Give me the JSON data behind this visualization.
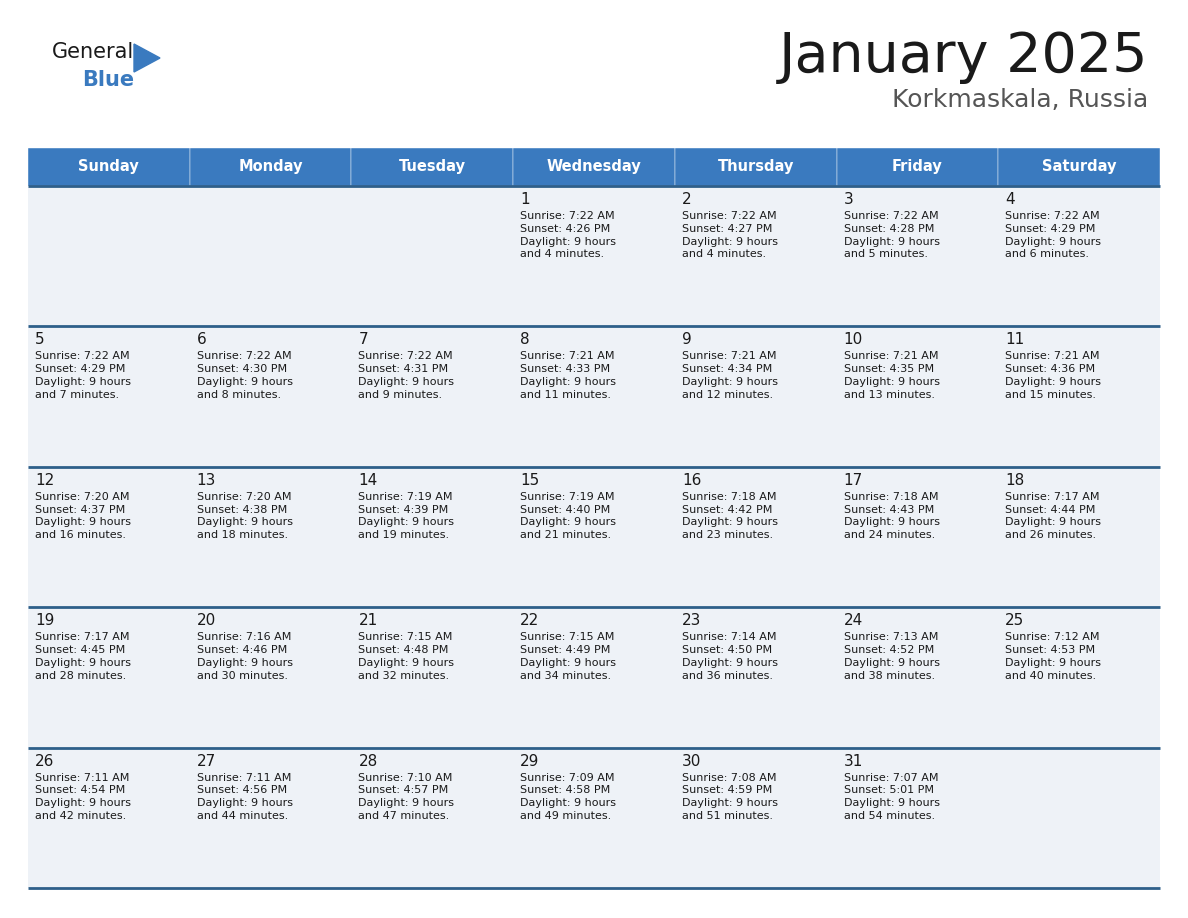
{
  "title": "January 2025",
  "subtitle": "Korkmaskala, Russia",
  "header_color": "#3a7abf",
  "header_text_color": "#ffffff",
  "cell_bg_color": "#eef2f7",
  "border_color": "#2e5f8a",
  "thin_border_color": "#cccccc",
  "days_of_week": [
    "Sunday",
    "Monday",
    "Tuesday",
    "Wednesday",
    "Thursday",
    "Friday",
    "Saturday"
  ],
  "calendar_data": [
    [
      {
        "day": null,
        "sunrise": null,
        "sunset": null,
        "daylight": null
      },
      {
        "day": null,
        "sunrise": null,
        "sunset": null,
        "daylight": null
      },
      {
        "day": null,
        "sunrise": null,
        "sunset": null,
        "daylight": null
      },
      {
        "day": 1,
        "sunrise": "7:22 AM",
        "sunset": "4:26 PM",
        "daylight": "9 hours\nand 4 minutes."
      },
      {
        "day": 2,
        "sunrise": "7:22 AM",
        "sunset": "4:27 PM",
        "daylight": "9 hours\nand 4 minutes."
      },
      {
        "day": 3,
        "sunrise": "7:22 AM",
        "sunset": "4:28 PM",
        "daylight": "9 hours\nand 5 minutes."
      },
      {
        "day": 4,
        "sunrise": "7:22 AM",
        "sunset": "4:29 PM",
        "daylight": "9 hours\nand 6 minutes."
      }
    ],
    [
      {
        "day": 5,
        "sunrise": "7:22 AM",
        "sunset": "4:29 PM",
        "daylight": "9 hours\nand 7 minutes."
      },
      {
        "day": 6,
        "sunrise": "7:22 AM",
        "sunset": "4:30 PM",
        "daylight": "9 hours\nand 8 minutes."
      },
      {
        "day": 7,
        "sunrise": "7:22 AM",
        "sunset": "4:31 PM",
        "daylight": "9 hours\nand 9 minutes."
      },
      {
        "day": 8,
        "sunrise": "7:21 AM",
        "sunset": "4:33 PM",
        "daylight": "9 hours\nand 11 minutes."
      },
      {
        "day": 9,
        "sunrise": "7:21 AM",
        "sunset": "4:34 PM",
        "daylight": "9 hours\nand 12 minutes."
      },
      {
        "day": 10,
        "sunrise": "7:21 AM",
        "sunset": "4:35 PM",
        "daylight": "9 hours\nand 13 minutes."
      },
      {
        "day": 11,
        "sunrise": "7:21 AM",
        "sunset": "4:36 PM",
        "daylight": "9 hours\nand 15 minutes."
      }
    ],
    [
      {
        "day": 12,
        "sunrise": "7:20 AM",
        "sunset": "4:37 PM",
        "daylight": "9 hours\nand 16 minutes."
      },
      {
        "day": 13,
        "sunrise": "7:20 AM",
        "sunset": "4:38 PM",
        "daylight": "9 hours\nand 18 minutes."
      },
      {
        "day": 14,
        "sunrise": "7:19 AM",
        "sunset": "4:39 PM",
        "daylight": "9 hours\nand 19 minutes."
      },
      {
        "day": 15,
        "sunrise": "7:19 AM",
        "sunset": "4:40 PM",
        "daylight": "9 hours\nand 21 minutes."
      },
      {
        "day": 16,
        "sunrise": "7:18 AM",
        "sunset": "4:42 PM",
        "daylight": "9 hours\nand 23 minutes."
      },
      {
        "day": 17,
        "sunrise": "7:18 AM",
        "sunset": "4:43 PM",
        "daylight": "9 hours\nand 24 minutes."
      },
      {
        "day": 18,
        "sunrise": "7:17 AM",
        "sunset": "4:44 PM",
        "daylight": "9 hours\nand 26 minutes."
      }
    ],
    [
      {
        "day": 19,
        "sunrise": "7:17 AM",
        "sunset": "4:45 PM",
        "daylight": "9 hours\nand 28 minutes."
      },
      {
        "day": 20,
        "sunrise": "7:16 AM",
        "sunset": "4:46 PM",
        "daylight": "9 hours\nand 30 minutes."
      },
      {
        "day": 21,
        "sunrise": "7:15 AM",
        "sunset": "4:48 PM",
        "daylight": "9 hours\nand 32 minutes."
      },
      {
        "day": 22,
        "sunrise": "7:15 AM",
        "sunset": "4:49 PM",
        "daylight": "9 hours\nand 34 minutes."
      },
      {
        "day": 23,
        "sunrise": "7:14 AM",
        "sunset": "4:50 PM",
        "daylight": "9 hours\nand 36 minutes."
      },
      {
        "day": 24,
        "sunrise": "7:13 AM",
        "sunset": "4:52 PM",
        "daylight": "9 hours\nand 38 minutes."
      },
      {
        "day": 25,
        "sunrise": "7:12 AM",
        "sunset": "4:53 PM",
        "daylight": "9 hours\nand 40 minutes."
      }
    ],
    [
      {
        "day": 26,
        "sunrise": "7:11 AM",
        "sunset": "4:54 PM",
        "daylight": "9 hours\nand 42 minutes."
      },
      {
        "day": 27,
        "sunrise": "7:11 AM",
        "sunset": "4:56 PM",
        "daylight": "9 hours\nand 44 minutes."
      },
      {
        "day": 28,
        "sunrise": "7:10 AM",
        "sunset": "4:57 PM",
        "daylight": "9 hours\nand 47 minutes."
      },
      {
        "day": 29,
        "sunrise": "7:09 AM",
        "sunset": "4:58 PM",
        "daylight": "9 hours\nand 49 minutes."
      },
      {
        "day": 30,
        "sunrise": "7:08 AM",
        "sunset": "4:59 PM",
        "daylight": "9 hours\nand 51 minutes."
      },
      {
        "day": 31,
        "sunrise": "7:07 AM",
        "sunset": "5:01 PM",
        "daylight": "9 hours\nand 54 minutes."
      },
      {
        "day": null,
        "sunrise": null,
        "sunset": null,
        "daylight": null
      }
    ]
  ]
}
